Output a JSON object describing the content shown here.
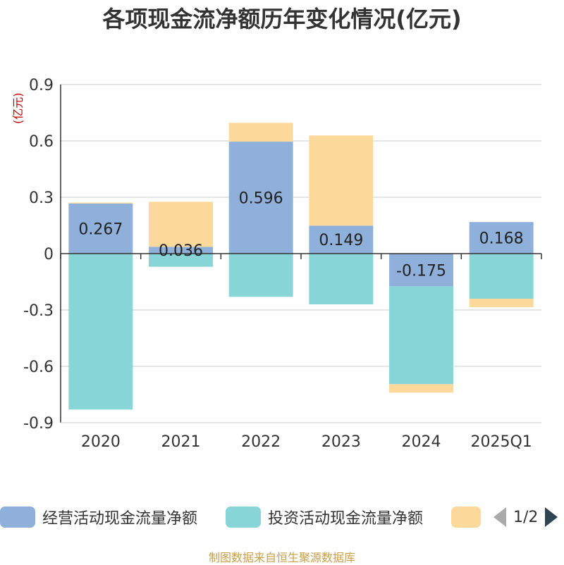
{
  "title": "各项现金流净额历年变化情况(亿元)",
  "unit_label": "(亿元)",
  "footer": "制图数据来自恒生聚源数据库",
  "legend": {
    "items": [
      {
        "label": "经营活动现金流量净额",
        "color": "#8eb0da"
      },
      {
        "label": "投资活动现金流量净额",
        "color": "#88d5d7"
      },
      {
        "label": "",
        "color": "#fcd99b"
      }
    ],
    "page": "1/2"
  },
  "chart_data": {
    "type": "bar",
    "stacked": true,
    "categories": [
      "2020",
      "2021",
      "2022",
      "2023",
      "2024",
      "2025Q1"
    ],
    "series": [
      {
        "name": "经营活动现金流量净额",
        "color": "#8eb0da",
        "values": [
          0.267,
          0.036,
          0.596,
          0.149,
          -0.175,
          0.168
        ],
        "show_labels": true
      },
      {
        "name": "投资活动现金流量净额",
        "color": "#88d5d7",
        "values": [
          -0.83,
          -0.07,
          -0.23,
          -0.27,
          -0.52,
          -0.24
        ],
        "show_labels": false
      },
      {
        "name": "",
        "color": "#fcd99b",
        "values": [
          0.005,
          0.24,
          0.1,
          0.48,
          -0.045,
          -0.045
        ],
        "show_labels": false
      }
    ],
    "ylim": [
      -0.9,
      0.9
    ],
    "yticks": [
      0.9,
      0.6,
      0.3,
      0,
      -0.3,
      -0.6,
      -0.9
    ],
    "ytick_labels": [
      "0.9",
      "0.6",
      "0.3",
      "0",
      "-0.3",
      "-0.6",
      "-0.9"
    ],
    "grid": true,
    "legend_position": "bottom"
  }
}
